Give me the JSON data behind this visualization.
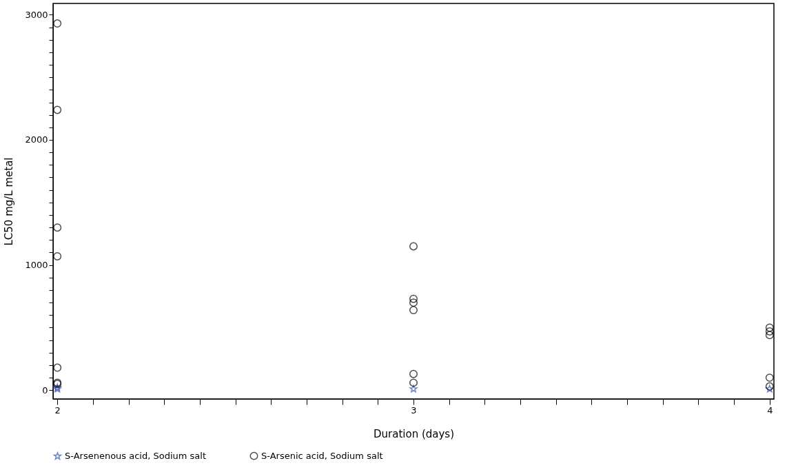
{
  "chart_data": {
    "type": "scatter",
    "xlabel": "Duration (days)",
    "ylabel": "LC50 mg/L metal",
    "xlim": [
      1.988,
      4.012
    ],
    "ylim": [
      -70,
      3090
    ],
    "xticks": [
      2,
      {
        "value": 2.1,
        "label": null
      },
      {
        "value": 2.2,
        "label": null
      },
      {
        "value": 2.3,
        "label": null
      },
      {
        "value": 2.4,
        "label": null
      },
      {
        "value": 2.5,
        "label": null
      },
      {
        "value": 2.6,
        "label": null
      },
      {
        "value": 2.7,
        "label": null
      },
      {
        "value": 2.8,
        "label": null
      },
      {
        "value": 2.9,
        "label": null
      },
      3,
      {
        "value": 3.1,
        "label": null
      },
      {
        "value": 3.2,
        "label": null
      },
      {
        "value": 3.3,
        "label": null
      },
      {
        "value": 3.4,
        "label": null
      },
      {
        "value": 3.5,
        "label": null
      },
      {
        "value": 3.6,
        "label": null
      },
      {
        "value": 3.7,
        "label": null
      },
      {
        "value": 3.8,
        "label": null
      },
      {
        "value": 3.9,
        "label": null
      },
      4
    ],
    "yticks": [
      0,
      {
        "value": 100,
        "label": null
      },
      {
        "value": 200,
        "label": null
      },
      {
        "value": 300,
        "label": null
      },
      {
        "value": 400,
        "label": null
      },
      {
        "value": 500,
        "label": null
      },
      {
        "value": 600,
        "label": null
      },
      {
        "value": 700,
        "label": null
      },
      {
        "value": 800,
        "label": null
      },
      {
        "value": 900,
        "label": null
      },
      1000,
      {
        "value": 1100,
        "label": null
      },
      {
        "value": 1200,
        "label": null
      },
      {
        "value": 1300,
        "label": null
      },
      {
        "value": 1400,
        "label": null
      },
      {
        "value": 1500,
        "label": null
      },
      {
        "value": 1600,
        "label": null
      },
      {
        "value": 1700,
        "label": null
      },
      {
        "value": 1800,
        "label": null
      },
      {
        "value": 1900,
        "label": null
      },
      2000,
      {
        "value": 2100,
        "label": null
      },
      {
        "value": 2200,
        "label": null
      },
      {
        "value": 2300,
        "label": null
      },
      {
        "value": 2400,
        "label": null
      },
      {
        "value": 2500,
        "label": null
      },
      {
        "value": 2600,
        "label": null
      },
      {
        "value": 2700,
        "label": null
      },
      {
        "value": 2800,
        "label": null
      },
      {
        "value": 2900,
        "label": null
      },
      3000
    ],
    "grid": false,
    "legend": "bottom",
    "series": [
      {
        "name": "S-Arsenenous acid, Sodium salt",
        "color": "#3050b0",
        "marker": "star",
        "x": [
          2,
          2,
          3,
          4
        ],
        "values": [
          20,
          10,
          10,
          10
        ]
      },
      {
        "name": "S-Arsenic acid, Sodium salt",
        "color": "#000000",
        "marker": "circle",
        "x": [
          2,
          2,
          2,
          2,
          2,
          2,
          2,
          3,
          3,
          3,
          3,
          3,
          3,
          4,
          4,
          4,
          4,
          4
        ],
        "values": [
          2930,
          2240,
          1300,
          1070,
          180,
          60,
          50,
          1150,
          730,
          700,
          640,
          130,
          60,
          500,
          470,
          440,
          100,
          30
        ]
      }
    ]
  }
}
